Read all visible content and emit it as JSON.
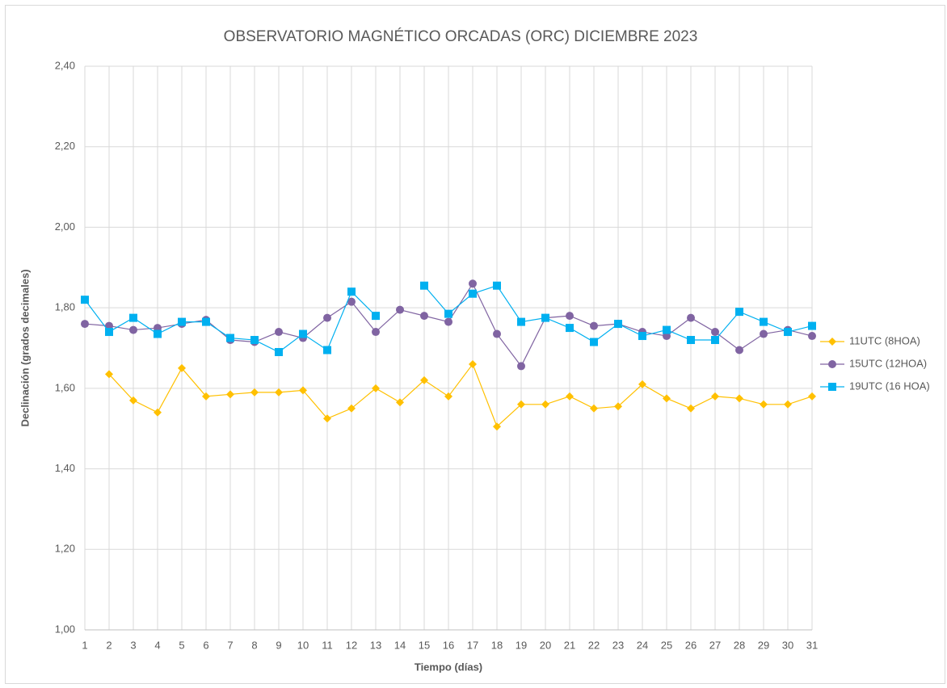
{
  "chart_data": {
    "type": "line",
    "title": "OBSERVATORIO MAGNÉTICO ORCADAS (ORC) DICIEMBRE 2023",
    "x_label": "Tiempo (días)",
    "y_label": "Declinación (grados decimales)",
    "x": [
      1,
      2,
      3,
      4,
      5,
      6,
      7,
      8,
      9,
      10,
      11,
      12,
      13,
      14,
      15,
      16,
      17,
      18,
      19,
      20,
      21,
      22,
      23,
      24,
      25,
      26,
      27,
      28,
      29,
      30,
      31
    ],
    "xlim": [
      1,
      31
    ],
    "xticks": [
      1,
      2,
      3,
      4,
      5,
      6,
      7,
      8,
      9,
      10,
      11,
      12,
      13,
      14,
      15,
      16,
      17,
      18,
      19,
      20,
      21,
      22,
      23,
      24,
      25,
      26,
      27,
      28,
      29,
      30,
      31
    ],
    "ylim": [
      1.0,
      2.4
    ],
    "yticks": [
      {
        "value": 1.0,
        "label": "1,00"
      },
      {
        "value": 1.2,
        "label": "1,20"
      },
      {
        "value": 1.4,
        "label": "1,40"
      },
      {
        "value": 1.6,
        "label": "1,60"
      },
      {
        "value": 1.8,
        "label": "1,80"
      },
      {
        "value": 2.0,
        "label": "2,00"
      },
      {
        "value": 2.2,
        "label": "2,20"
      },
      {
        "value": 2.4,
        "label": "2,40"
      }
    ],
    "grid": true,
    "legend": "right",
    "series": [
      {
        "name": "11UTC (8HOA)",
        "color": "#ffc000",
        "marker": "diamond",
        "values": [
          null,
          1.635,
          1.57,
          1.54,
          1.65,
          1.58,
          1.585,
          1.59,
          1.59,
          1.595,
          1.525,
          1.55,
          1.6,
          1.565,
          1.62,
          1.58,
          1.66,
          1.505,
          1.56,
          1.56,
          1.58,
          1.55,
          1.555,
          1.61,
          1.575,
          1.55,
          1.58,
          1.575,
          1.56,
          1.56,
          1.58
        ]
      },
      {
        "name": "15UTC (12HOA)",
        "color": "#8064a2",
        "marker": "circle",
        "values": [
          1.76,
          1.755,
          1.745,
          1.75,
          1.76,
          1.77,
          1.72,
          1.715,
          1.74,
          1.725,
          1.775,
          1.815,
          1.74,
          1.795,
          1.78,
          1.765,
          1.86,
          1.735,
          1.655,
          1.775,
          1.78,
          1.755,
          1.76,
          1.74,
          1.73,
          1.775,
          1.74,
          1.695,
          1.735,
          1.745,
          1.73
        ]
      },
      {
        "name": "19UTC (16 HOA)",
        "color": "#00b0f0",
        "marker": "square",
        "values": [
          1.82,
          1.74,
          1.775,
          1.735,
          1.765,
          1.765,
          1.725,
          1.72,
          1.69,
          1.735,
          1.695,
          1.84,
          1.78,
          null,
          1.855,
          1.785,
          1.835,
          1.855,
          1.765,
          1.775,
          1.75,
          1.715,
          1.76,
          1.73,
          1.745,
          1.72,
          1.72,
          1.79,
          1.765,
          1.74,
          1.755
        ]
      }
    ]
  }
}
